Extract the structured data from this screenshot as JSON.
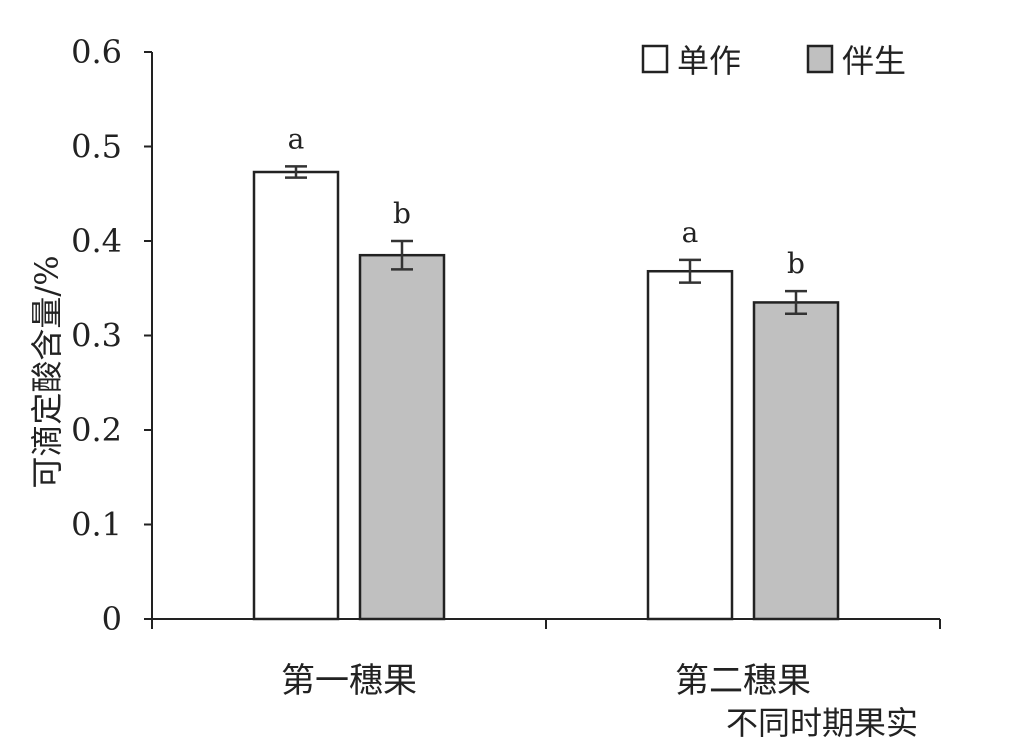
{
  "chart_data": {
    "type": "bar",
    "categories": [
      "第一穗果",
      "第二穗果"
    ],
    "series": [
      {
        "name": "单作",
        "values": [
          0.473,
          0.368
        ],
        "errors": [
          0.006,
          0.012
        ],
        "labels": [
          "a",
          "a"
        ],
        "color": "#ffffff"
      },
      {
        "name": "伴生",
        "values": [
          0.385,
          0.335
        ],
        "errors": [
          0.015,
          0.012
        ],
        "labels": [
          "b",
          "b"
        ],
        "color": "#c0c0c0"
      }
    ],
    "xlabel": "不同时期果实",
    "ylabel": "可滴定酸含量/%",
    "ylim": [
      0,
      0.6
    ],
    "yticks": [
      "0",
      "0.1",
      "0.2",
      "0.3",
      "0.4",
      "0.5",
      "0.6"
    ],
    "legend": "top-right",
    "grid": false
  }
}
